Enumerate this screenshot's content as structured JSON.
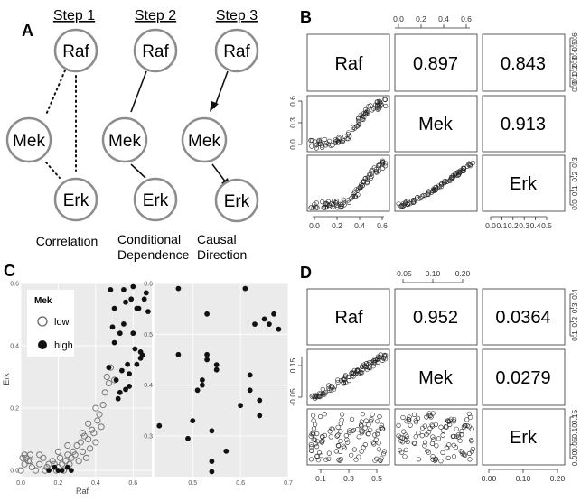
{
  "panel_a": {
    "letter": "A",
    "steps": [
      "Step 1",
      "Step 2",
      "Step 3"
    ],
    "nodes": [
      "Raf",
      "Mek",
      "Erk"
    ],
    "captions": [
      [
        "Correlation"
      ],
      [
        "Conditional",
        "Dependence"
      ],
      [
        "Causal",
        "Direction"
      ]
    ]
  },
  "panel_b": {
    "letter": "B",
    "labels": [
      "Raf",
      "Mek",
      "Erk"
    ],
    "correlations": {
      "raf_mek": "0.897",
      "raf_erk": "0.843",
      "mek_erk": "0.913"
    },
    "top_ticks": [
      "0.0",
      "0.2",
      "0.4",
      "0.6"
    ],
    "left_ticks": [
      "0.0",
      "0.3",
      "0.6"
    ],
    "right_ticks_raf": [
      "0.0",
      "0.1",
      "0.2",
      "0.3",
      "0.4",
      "0.5",
      "0.6"
    ],
    "right_ticks_erk": [
      "0.0",
      "0.1",
      "0.2",
      "0.3"
    ],
    "bottom_ticks_raf": [
      "0.0",
      "0.2",
      "0.4",
      "0.6"
    ],
    "bottom_ticks_erk": [
      "0.0",
      "0.1",
      "0.2",
      "0.3",
      "0.4",
      "0.5"
    ]
  },
  "panel_c": {
    "letter": "C",
    "legend_title": "Mek",
    "legend_items": [
      "low",
      "high"
    ],
    "xlabel": "Raf",
    "ylabel": "Erk",
    "left_xticks": [
      "0.0",
      "0.2",
      "0.4",
      "0.6"
    ],
    "left_yticks": [
      "0.0",
      "0.2",
      "0.4",
      "0.6"
    ],
    "right_xticks": [
      "0.5",
      "0.6",
      "0.7"
    ],
    "right_yticks": [
      "0.3",
      "0.4",
      "0.5",
      "0.6"
    ]
  },
  "panel_d": {
    "letter": "D",
    "labels": [
      "Raf",
      "Mek",
      "Erk"
    ],
    "correlations": {
      "raf_mek": "0.952",
      "raf_erk": "0.0364",
      "mek_erk": "0.0279"
    },
    "top_ticks": [
      "-0.05",
      "0.10",
      "0.20"
    ],
    "left_ticks": [
      "-0.05",
      "0.15"
    ],
    "right_ticks_raf": [
      "0.1",
      "0.2",
      "0.3",
      "0.4"
    ],
    "right_ticks_erk": [
      "0.00",
      "0.05",
      "0.10",
      "0.15"
    ],
    "bottom_ticks_raf": [
      "0.1",
      "0.3",
      "0.5"
    ],
    "bottom_ticks_erk": [
      "0.00",
      "0.10",
      "0.20"
    ]
  },
  "chart_data": [
    {
      "type": "scatter",
      "title": "",
      "xlabel": "Raf",
      "ylabel": "Erk",
      "xlim": [
        0,
        0.7
      ],
      "ylim": [
        -0.02,
        0.6
      ],
      "series": [
        {
          "name": "low",
          "x": [
            0.0,
            0.01,
            0.02,
            0.03,
            0.04,
            0.05,
            0.06,
            0.08,
            0.1,
            0.12,
            0.14,
            0.15,
            0.17,
            0.18,
            0.19,
            0.2,
            0.21,
            0.22,
            0.23,
            0.24,
            0.25,
            0.26,
            0.27,
            0.28,
            0.29,
            0.3,
            0.31,
            0.32,
            0.33,
            0.34,
            0.35,
            0.36,
            0.37,
            0.38,
            0.39,
            0.4,
            0.41,
            0.42,
            0.43,
            0.44,
            0.45,
            0.46,
            0.47,
            0.48,
            0.5,
            0.02,
            0.05,
            0.1,
            0.13,
            0.2,
            0.25,
            0.33,
            0.36,
            0.4
          ],
          "y": [
            0.0,
            0.04,
            0.05,
            0.04,
            0.03,
            0.05,
            0.01,
            0.0,
            0.02,
            0.04,
            0.01,
            0.02,
            0.03,
            0.02,
            0.0,
            0.01,
            0.04,
            0.02,
            0.0,
            0.03,
            0.05,
            0.02,
            0.04,
            0.06,
            0.05,
            0.08,
            0.03,
            0.09,
            0.06,
            0.11,
            0.04,
            0.1,
            0.07,
            0.13,
            0.12,
            0.09,
            0.16,
            0.18,
            0.14,
            0.21,
            0.25,
            0.3,
            0.28,
            0.33,
            0.29,
            0.02,
            0.03,
            0.05,
            0.0,
            0.06,
            0.08,
            0.12,
            0.15,
            0.2
          ]
        },
        {
          "name": "high",
          "x": [
            0.15,
            0.18,
            0.2,
            0.22,
            0.25,
            0.27,
            0.47,
            0.48,
            0.49,
            0.5,
            0.51,
            0.52,
            0.53,
            0.54,
            0.55,
            0.56,
            0.57,
            0.58,
            0.59,
            0.6,
            0.61,
            0.62,
            0.63,
            0.64,
            0.65,
            0.66,
            0.67,
            0.68,
            0.5,
            0.53,
            0.55,
            0.6,
            0.62,
            0.64,
            0.56,
            0.58
          ],
          "y": [
            0.0,
            0.01,
            0.0,
            0.0,
            0.01,
            0.0,
            0.33,
            0.58,
            0.46,
            0.41,
            0.29,
            0.23,
            0.25,
            0.32,
            0.58,
            0.54,
            0.34,
            0.27,
            0.55,
            0.59,
            0.39,
            0.52,
            0.52,
            0.38,
            0.37,
            0.55,
            0.57,
            0.51,
            0.52,
            0.44,
            0.47,
            0.44,
            0.34,
            0.36,
            0.26,
            0.31
          ]
        }
      ]
    },
    {
      "type": "scatter",
      "title": "",
      "xlabel": "",
      "ylabel": "",
      "xlim": [
        0.42,
        0.7
      ],
      "ylim": [
        0.22,
        0.6
      ],
      "series": [
        {
          "name": "high",
          "x": [
            0.47,
            0.43,
            0.47,
            0.49,
            0.5,
            0.51,
            0.52,
            0.53,
            0.53,
            0.53,
            0.54,
            0.54,
            0.54,
            0.55,
            0.57,
            0.61,
            0.62,
            0.63,
            0.64,
            0.64,
            0.65,
            0.66,
            0.67,
            0.68,
            0.52,
            0.55,
            0.62,
            0.6
          ],
          "y": [
            0.59,
            0.32,
            0.46,
            0.295,
            0.33,
            0.39,
            0.41,
            0.54,
            0.46,
            0.45,
            0.31,
            0.25,
            0.23,
            0.44,
            0.27,
            0.59,
            0.39,
            0.52,
            0.34,
            0.37,
            0.53,
            0.52,
            0.54,
            0.51,
            0.4,
            0.43,
            0.42,
            0.36
          ]
        }
      ]
    }
  ]
}
